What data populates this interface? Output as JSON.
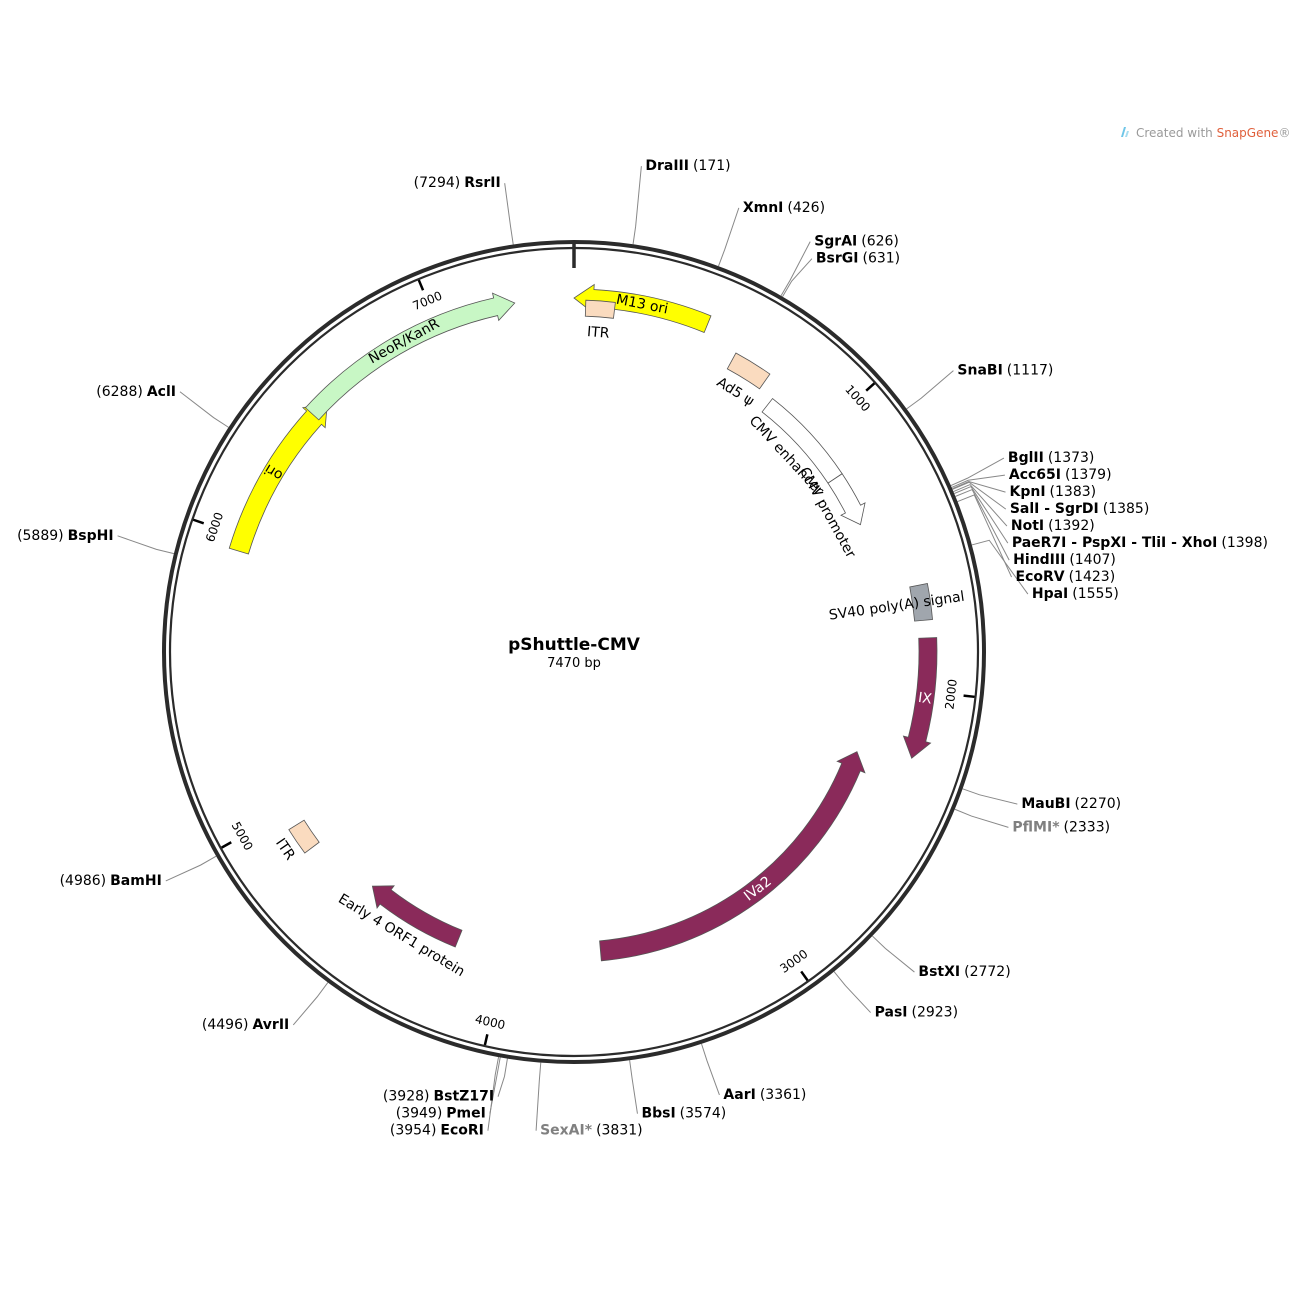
{
  "plasmid": {
    "name": "pShuttle-CMV",
    "length_label": "7470 bp",
    "total_bp": 7470
  },
  "watermark": {
    "prefix": "Created with ",
    "brand": "SnapGene",
    "suffix": "®"
  },
  "colors": {
    "backbone": "#2b2b2b",
    "yellow": "#ffff00",
    "green": "#c8f7c5",
    "peach": "#fadbbf",
    "gray": "#a0a6ad",
    "magenta": "#8a2a5a",
    "open": "#ffffff",
    "leader": "#888888"
  },
  "ticks": [
    {
      "label": "1000",
      "bp": 1000
    },
    {
      "label": "2000",
      "bp": 2000
    },
    {
      "label": "3000",
      "bp": 3000
    },
    {
      "label": "4000",
      "bp": 4000
    },
    {
      "label": "5000",
      "bp": 5000
    },
    {
      "label": "6000",
      "bp": 6000
    },
    {
      "label": "7000",
      "bp": 7000
    }
  ],
  "features": [
    {
      "name": "M13 ori",
      "start": 7470,
      "end": 7930,
      "strand": -1,
      "color": "yellow",
      "arrow": true,
      "label_pos": "inside"
    },
    {
      "name": "ITR",
      "start": 7510,
      "end": 7610,
      "strand": 0,
      "color": "peach",
      "arrow": false,
      "label_pos": "below"
    },
    {
      "name": "Ad5 ψ",
      "start": 590,
      "end": 730,
      "strand": 0,
      "color": "peach",
      "arrow": false,
      "label_pos": "below"
    },
    {
      "name": "CMV enhancer",
      "start": 790,
      "end": 1170,
      "strand": 1,
      "color": "open",
      "arrow": false,
      "label_pos": "below"
    },
    {
      "name": "CMV promoter",
      "start": 1170,
      "end": 1370,
      "strand": 1,
      "color": "open",
      "arrow": true,
      "label_pos": "below"
    },
    {
      "name": "SV40 poly(A) signal",
      "start": 1640,
      "end": 1760,
      "strand": 0,
      "color": "gray",
      "arrow": false,
      "label_pos": "below"
    },
    {
      "name": "IX",
      "start": 1820,
      "end": 2230,
      "strand": 1,
      "color": "magenta",
      "arrow": true,
      "label_pos": "inside"
    },
    {
      "name": "IVa2",
      "start": 2270,
      "end": 3630,
      "strand": -1,
      "color": "magenta",
      "arrow": true,
      "label_pos": "inside"
    },
    {
      "name": "Early 4 ORF1 protein",
      "start": 4190,
      "end": 4580,
      "strand": 1,
      "color": "magenta",
      "arrow": true,
      "label_pos": "outside"
    },
    {
      "name": "ITR",
      "start": 4840,
      "end": 4940,
      "strand": 0,
      "color": "peach",
      "arrow": false,
      "label_pos": "outside"
    },
    {
      "name": "ori",
      "start": 5950,
      "end": 6540,
      "strand": 1,
      "color": "yellow",
      "arrow": true,
      "label_pos": "inside"
    },
    {
      "name": "NeoR/KanR",
      "start": 6480,
      "end": 7270,
      "strand": 1,
      "color": "green",
      "arrow": true,
      "label_pos": "inside"
    }
  ],
  "sites": [
    {
      "name": "RsrII",
      "pos": "(7294)",
      "bp": 7294,
      "muted": false,
      "side": "left"
    },
    {
      "name": "DraIII",
      "pos": "(171)",
      "bp": 171,
      "muted": false,
      "side": "right"
    },
    {
      "name": "XmnI",
      "pos": "(426)",
      "bp": 426,
      "muted": false,
      "side": "right"
    },
    {
      "name": "SgrAI",
      "pos": "(626)",
      "bp": 626,
      "muted": false,
      "side": "right"
    },
    {
      "name": "BsrGI",
      "pos": "(631)",
      "bp": 631,
      "muted": false,
      "side": "right"
    },
    {
      "name": "SnaBI",
      "pos": "(1117)",
      "bp": 1117,
      "muted": false,
      "side": "right"
    },
    {
      "name": "BglII",
      "pos": "(1373)",
      "bp": 1373,
      "muted": false,
      "side": "right"
    },
    {
      "name": "Acc65I",
      "pos": "(1379)",
      "bp": 1379,
      "muted": false,
      "side": "right"
    },
    {
      "name": "KpnI",
      "pos": "(1383)",
      "bp": 1383,
      "muted": false,
      "side": "right"
    },
    {
      "name": "SalI - SgrDI",
      "pos": "(1385)",
      "bp": 1385,
      "muted": false,
      "side": "right"
    },
    {
      "name": "NotI",
      "pos": "(1392)",
      "bp": 1392,
      "muted": false,
      "side": "right"
    },
    {
      "name": "PaeR7I - PspXI - TliI - XhoI",
      "pos": "(1398)",
      "bp": 1398,
      "muted": false,
      "side": "right"
    },
    {
      "name": "HindIII",
      "pos": "(1407)",
      "bp": 1407,
      "muted": false,
      "side": "right"
    },
    {
      "name": "EcoRV",
      "pos": "(1423)",
      "bp": 1423,
      "muted": false,
      "side": "right"
    },
    {
      "name": "HpaI",
      "pos": "(1555)",
      "bp": 1555,
      "muted": false,
      "side": "right"
    },
    {
      "name": "MauBI",
      "pos": "(2270)",
      "bp": 2270,
      "muted": false,
      "side": "right"
    },
    {
      "name": "PflMI*",
      "pos": "(2333)",
      "bp": 2333,
      "muted": true,
      "side": "right"
    },
    {
      "name": "BstXI",
      "pos": "(2772)",
      "bp": 2772,
      "muted": false,
      "side": "right"
    },
    {
      "name": "PasI",
      "pos": "(2923)",
      "bp": 2923,
      "muted": false,
      "side": "right"
    },
    {
      "name": "AarI",
      "pos": "(3361)",
      "bp": 3361,
      "muted": false,
      "side": "right"
    },
    {
      "name": "BbsI",
      "pos": "(3574)",
      "bp": 3574,
      "muted": false,
      "side": "right"
    },
    {
      "name": "SexAI*",
      "pos": "(3831)",
      "bp": 3831,
      "muted": true,
      "side": "right"
    },
    {
      "name": "BstZ17I",
      "pos": "(3928)",
      "bp": 3928,
      "muted": false,
      "side": "left"
    },
    {
      "name": "PmeI",
      "pos": "(3949)",
      "bp": 3949,
      "muted": false,
      "side": "left"
    },
    {
      "name": "EcoRI",
      "pos": "(3954)",
      "bp": 3954,
      "muted": false,
      "side": "left"
    },
    {
      "name": "AvrII",
      "pos": "(4496)",
      "bp": 4496,
      "muted": false,
      "side": "left"
    },
    {
      "name": "BamHI",
      "pos": "(4986)",
      "bp": 4986,
      "muted": false,
      "side": "left"
    },
    {
      "name": "BspHI",
      "pos": "(5889)",
      "bp": 5889,
      "muted": false,
      "side": "left"
    },
    {
      "name": "AclI",
      "pos": "(6288)",
      "bp": 6288,
      "muted": false,
      "side": "left"
    }
  ]
}
